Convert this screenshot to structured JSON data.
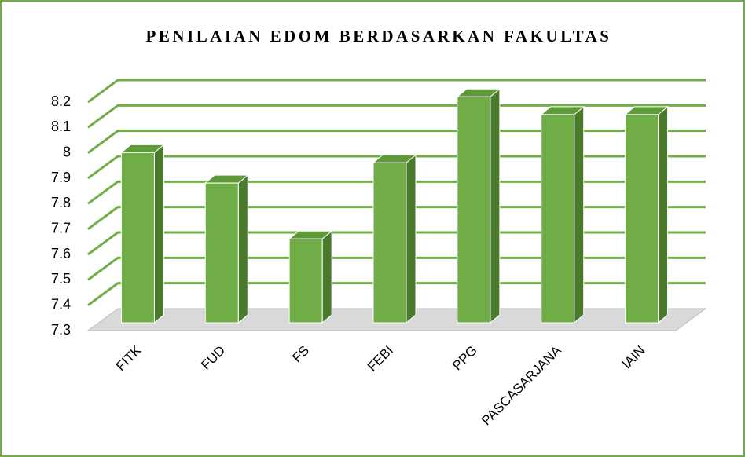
{
  "chart_data": {
    "type": "bar3d",
    "title": "PENILAIAN EDOM BERDASARKAN FAKULTAS",
    "categories": [
      "FITK",
      "FUD",
      "FS",
      "FEBI",
      "PPG",
      "PASCASARJANA",
      "IAIN"
    ],
    "values": [
      7.97,
      7.85,
      7.63,
      7.93,
      8.19,
      8.12,
      8.12
    ],
    "color": "#70ad47",
    "ylim": [
      7.3,
      8.2
    ],
    "yticks": [
      7.3,
      7.4,
      7.5,
      7.6,
      7.7,
      7.8,
      7.9,
      8,
      8.1,
      8.2
    ],
    "grid": true
  }
}
